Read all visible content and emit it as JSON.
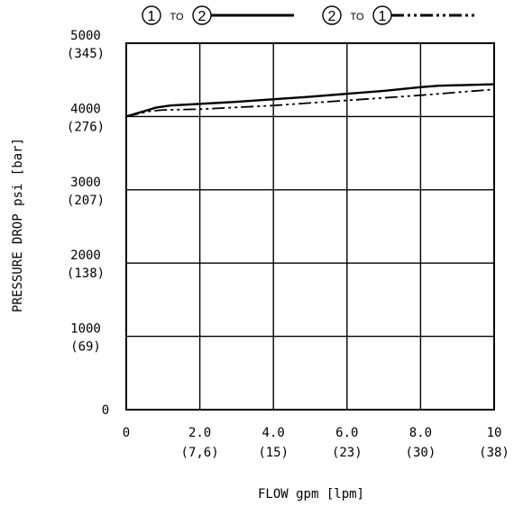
{
  "chart_data": {
    "type": "line",
    "xlabel": "FLOW gpm [lpm]",
    "ylabel": "PRESSURE DROP psi [bar]",
    "xlim": [
      0,
      10
    ],
    "ylim": [
      0,
      5000
    ],
    "grid": true,
    "legend_position": "top",
    "x_ticks": [
      {
        "value": 0,
        "label": "0",
        "sub": ""
      },
      {
        "value": 2,
        "label": "2.0",
        "sub": "(7,6)"
      },
      {
        "value": 4,
        "label": "4.0",
        "sub": "(15)"
      },
      {
        "value": 6,
        "label": "6.0",
        "sub": "(23)"
      },
      {
        "value": 8,
        "label": "8.0",
        "sub": "(30)"
      },
      {
        "value": 10,
        "label": "10",
        "sub": "(38)"
      }
    ],
    "y_ticks": [
      {
        "value": 0,
        "label": "0",
        "sub": ""
      },
      {
        "value": 1000,
        "label": "1000",
        "sub": "(69)"
      },
      {
        "value": 2000,
        "label": "2000",
        "sub": "(138)"
      },
      {
        "value": 3000,
        "label": "3000",
        "sub": "(207)"
      },
      {
        "value": 4000,
        "label": "4000",
        "sub": "(276)"
      },
      {
        "value": 5000,
        "label": "5000",
        "sub": "(345)"
      }
    ],
    "series": [
      {
        "name": "1 TO 2",
        "from": "1",
        "connector": "TO",
        "to": "2",
        "style": "solid",
        "x": [
          0,
          0.8,
          1.2,
          3,
          5,
          7,
          8,
          8.5,
          10
        ],
        "y": [
          4000,
          4120,
          4150,
          4200,
          4270,
          4350,
          4400,
          4420,
          4440
        ]
      },
      {
        "name": "2 TO 1",
        "from": "2",
        "connector": "TO",
        "to": "1",
        "style": "dash-dot-dot",
        "x": [
          0,
          0.6,
          1,
          2,
          4,
          6,
          8,
          10
        ],
        "y": [
          4000,
          4070,
          4090,
          4100,
          4150,
          4220,
          4290,
          4370
        ]
      }
    ]
  }
}
